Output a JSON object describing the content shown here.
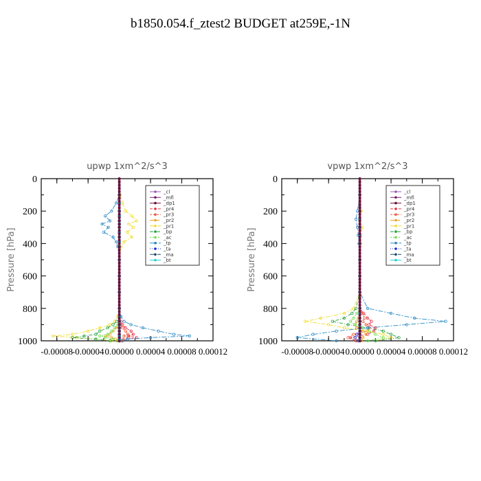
{
  "title": "b1850.054.f_ztest2  BUDGET at259E,-1N",
  "colors": {
    "_cl": "#9b59b6",
    "_mfl": "#7b1f6e",
    "_dp1": "#6a0f3a",
    "_pr4": "#e8344a",
    "_pr3": "#f25a3c",
    "_pr2": "#f0a020",
    "_pr1": "#f0dc28",
    "_bp": "#1f9e3a",
    "_ac": "#6ee04a",
    "_tp": "#2a8ac8",
    "_ta": "#1a2ae0",
    "_ma": "#1a4a6a",
    "_bt": "#28d2d2"
  },
  "chart_data": [
    {
      "type": "line",
      "title": "upwp    1xm^2/s^3",
      "ylabel": "Pressure  [hPa]",
      "xlim": [
        -0.0001,
        0.00012
      ],
      "ylim": [
        1000,
        0
      ],
      "x_ticks": [
        "-0.00008",
        "-0.00004",
        "0.00000",
        "0.00004",
        "0.00008",
        "0.00012"
      ],
      "x_tick_values": [
        -8e-05,
        -4e-05,
        0,
        4e-05,
        8e-05,
        0.00012
      ],
      "y_ticks": [
        0,
        200,
        400,
        600,
        800,
        1000
      ],
      "legend_position": "top-right",
      "pressure": [
        100,
        150,
        200,
        230,
        260,
        280,
        300,
        330,
        360,
        390,
        420,
        500,
        600,
        700,
        800,
        850,
        880,
        900,
        920,
        940,
        960,
        970,
        980,
        990,
        1000
      ],
      "series": [
        {
          "name": "_cl",
          "values": [
            0,
            0,
            0,
            0,
            0,
            0,
            0,
            0,
            0,
            0,
            0,
            0,
            0,
            0,
            0,
            0,
            0,
            0,
            0,
            0,
            0,
            0,
            0,
            0,
            0
          ]
        },
        {
          "name": "_mfl",
          "values": [
            0,
            0,
            0,
            0,
            0,
            0,
            0,
            0,
            0,
            0,
            0,
            0,
            0,
            0,
            0,
            0,
            0,
            0,
            0,
            0,
            0,
            0,
            0,
            0,
            0
          ]
        },
        {
          "name": "_dp1",
          "values": [
            0,
            0,
            0,
            0,
            0,
            0,
            0,
            0,
            0,
            0,
            0,
            0,
            0,
            0,
            0,
            0,
            0,
            0,
            0,
            0,
            0,
            0,
            0,
            0,
            0
          ]
        },
        {
          "name": "_pr4",
          "values": [
            0,
            0,
            0,
            0,
            0,
            0,
            0,
            0,
            0,
            0,
            0,
            0,
            0,
            0,
            0,
            0,
            2e-06,
            4e-06,
            8e-06,
            1.5e-05,
            1.8e-05,
            1.2e-05,
            2.2e-05,
            1e-05,
            4e-06
          ]
        },
        {
          "name": "_pr3",
          "values": [
            0,
            0,
            0,
            0,
            0,
            0,
            0,
            0,
            0,
            0,
            0,
            0,
            0,
            0,
            0,
            0,
            0,
            2e-06,
            4e-06,
            8e-06,
            1.1e-05,
            6e-06,
            1.2e-05,
            5e-06,
            2e-06
          ]
        },
        {
          "name": "_pr2",
          "values": [
            0,
            0,
            0,
            0,
            0,
            0,
            0,
            0,
            0,
            0,
            0,
            0,
            0,
            0,
            0,
            0,
            0,
            0,
            -4e-06,
            -8e-06,
            -1.2e-05,
            -1.8e-05,
            -1e-05,
            -5e-06,
            -2e-06
          ]
        },
        {
          "name": "_pr1",
          "values": [
            1e-06,
            4e-06,
            8e-06,
            1.6e-05,
            2.2e-05,
            1.2e-05,
            1.8e-05,
            1e-05,
            1.6e-05,
            6e-06,
            2e-06,
            0,
            0,
            0,
            0,
            -2e-06,
            -6e-06,
            -1.2e-05,
            -2.5e-05,
            -4e-05,
            -6e-05,
            -8.5e-05,
            -5.5e-05,
            -3e-05,
            -1e-05
          ]
        },
        {
          "name": "_bp",
          "values": [
            0,
            0,
            0,
            0,
            0,
            0,
            0,
            0,
            0,
            0,
            0,
            0,
            0,
            0,
            0,
            0,
            -3e-06,
            -8e-06,
            -1.5e-05,
            -2.5e-05,
            -3e-05,
            -4.5e-05,
            -6e-05,
            -3e-05,
            -1.2e-05
          ]
        },
        {
          "name": "_ac",
          "values": [
            0,
            0,
            0,
            0,
            0,
            0,
            0,
            0,
            0,
            0,
            0,
            0,
            0,
            0,
            0,
            0,
            0,
            -2e-06,
            -6e-06,
            -1e-05,
            -1.5e-05,
            -2.5e-05,
            -1.8e-05,
            -8e-06,
            -3e-06
          ]
        },
        {
          "name": "_tp",
          "values": [
            0,
            -4e-06,
            -1e-05,
            -1.8e-05,
            -1.2e-05,
            -2.2e-05,
            -1.4e-05,
            -2e-05,
            -8e-06,
            -4e-06,
            -2e-06,
            0,
            0,
            0,
            0,
            2e-06,
            6e-06,
            1.5e-05,
            3e-05,
            5e-05,
            7e-05,
            9e-05,
            4e-05,
            1e-05,
            4e-06
          ]
        },
        {
          "name": "_ta",
          "values": [
            0,
            0,
            0,
            0,
            0,
            0,
            0,
            0,
            0,
            0,
            0,
            0,
            0,
            0,
            0,
            0,
            0,
            0,
            0,
            0,
            0,
            0,
            0,
            0,
            0
          ]
        },
        {
          "name": "_ma",
          "values": [
            0,
            0,
            0,
            0,
            0,
            0,
            0,
            0,
            0,
            0,
            0,
            0,
            0,
            0,
            0,
            0,
            0,
            0,
            0,
            0,
            0,
            0,
            0,
            0,
            0
          ]
        },
        {
          "name": "_bt",
          "values": [
            0,
            0,
            0,
            0,
            0,
            0,
            0,
            0,
            0,
            0,
            0,
            0,
            0,
            0,
            0,
            0,
            0,
            0,
            0,
            0,
            0,
            0,
            0,
            0,
            0
          ]
        }
      ]
    },
    {
      "type": "line",
      "title": "vpwp    1xm^2/s^3",
      "ylabel": "Pressure  [hPa]",
      "xlim": [
        -0.0001,
        0.00012
      ],
      "ylim": [
        1000,
        0
      ],
      "x_ticks": [
        "-0.00008",
        "-0.00004",
        "0.00000",
        "0.00004",
        "0.00008",
        "0.00012"
      ],
      "x_tick_values": [
        -8e-05,
        -4e-05,
        0,
        4e-05,
        8e-05,
        0.00012
      ],
      "y_ticks": [
        0,
        200,
        400,
        600,
        800,
        1000
      ],
      "legend_position": "top-right",
      "pressure": [
        100,
        200,
        250,
        300,
        350,
        400,
        500,
        600,
        700,
        800,
        830,
        860,
        880,
        900,
        920,
        940,
        960,
        980,
        1000
      ],
      "series": [
        {
          "name": "_cl",
          "values": [
            0,
            0,
            0,
            0,
            0,
            0,
            0,
            0,
            0,
            0,
            0,
            0,
            0,
            0,
            0,
            0,
            0,
            0,
            0
          ]
        },
        {
          "name": "_mfl",
          "values": [
            0,
            0,
            0,
            0,
            0,
            0,
            0,
            0,
            0,
            0,
            0,
            0,
            0,
            0,
            0,
            0,
            0,
            0,
            0
          ]
        },
        {
          "name": "_dp1",
          "values": [
            0,
            0,
            0,
            0,
            0,
            0,
            0,
            0,
            0,
            0,
            0,
            0,
            0,
            0,
            0,
            0,
            0,
            0,
            0
          ]
        },
        {
          "name": "_pr4",
          "values": [
            0,
            0,
            0,
            0,
            0,
            0,
            0,
            0,
            0,
            0,
            5e-06,
            1e-05,
            1.5e-05,
            1.2e-05,
            2e-05,
            1.8e-05,
            1e-05,
            -1.2e-05,
            -5e-06
          ]
        },
        {
          "name": "_pr3",
          "values": [
            0,
            0,
            0,
            0,
            0,
            0,
            0,
            0,
            0,
            0,
            3e-06,
            6e-06,
            4e-06,
            8e-06,
            1.2e-05,
            1e-05,
            -8e-06,
            -1.5e-05,
            -5e-06
          ]
        },
        {
          "name": "_pr2",
          "values": [
            0,
            0,
            0,
            0,
            0,
            0,
            0,
            0,
            0,
            0,
            0,
            -2e-06,
            -4e-06,
            -6e-06,
            -4e-06,
            4e-06,
            8e-06,
            4e-06,
            2e-06
          ]
        },
        {
          "name": "_pr1",
          "values": [
            0,
            2e-06,
            0,
            3e-06,
            1e-06,
            1e-06,
            0,
            0,
            0,
            -8e-06,
            -2e-05,
            -5e-05,
            -7e-05,
            -4e-05,
            -2e-05,
            1e-05,
            3e-05,
            4e-05,
            2e-05
          ]
        },
        {
          "name": "_bp",
          "values": [
            0,
            0,
            0,
            0,
            0,
            0,
            0,
            0,
            0,
            -5e-06,
            -1e-05,
            -2e-05,
            -3.5e-05,
            -1.5e-05,
            1e-05,
            3e-05,
            4e-05,
            5e-05,
            2e-05
          ]
        },
        {
          "name": "_ac",
          "values": [
            0,
            0,
            0,
            0,
            0,
            0,
            0,
            0,
            0,
            0,
            -4e-06,
            -8e-06,
            -1.2e-05,
            -6e-06,
            4e-06,
            1.2e-05,
            2e-05,
            3e-05,
            1e-05
          ]
        },
        {
          "name": "_tp",
          "values": [
            0,
            -3e-06,
            -5e-06,
            -3e-06,
            -2e-06,
            -1e-06,
            0,
            0,
            0,
            1e-05,
            4e-05,
            7e-05,
            0.00011,
            6e-05,
            1e-05,
            -3e-05,
            -6e-05,
            -8e-05,
            -3e-05
          ]
        },
        {
          "name": "_ta",
          "values": [
            0,
            0,
            0,
            0,
            0,
            0,
            0,
            0,
            0,
            0,
            0,
            0,
            0,
            0,
            0,
            0,
            -4e-06,
            -6e-06,
            -2e-06
          ]
        },
        {
          "name": "_ma",
          "values": [
            0,
            0,
            0,
            0,
            0,
            0,
            0,
            0,
            0,
            0,
            0,
            0,
            0,
            0,
            0,
            0,
            0,
            0,
            0
          ]
        },
        {
          "name": "_bt",
          "values": [
            0,
            0,
            0,
            0,
            0,
            0,
            0,
            0,
            0,
            0,
            0,
            0,
            0,
            0,
            0,
            0,
            0,
            0,
            0
          ]
        }
      ]
    }
  ]
}
